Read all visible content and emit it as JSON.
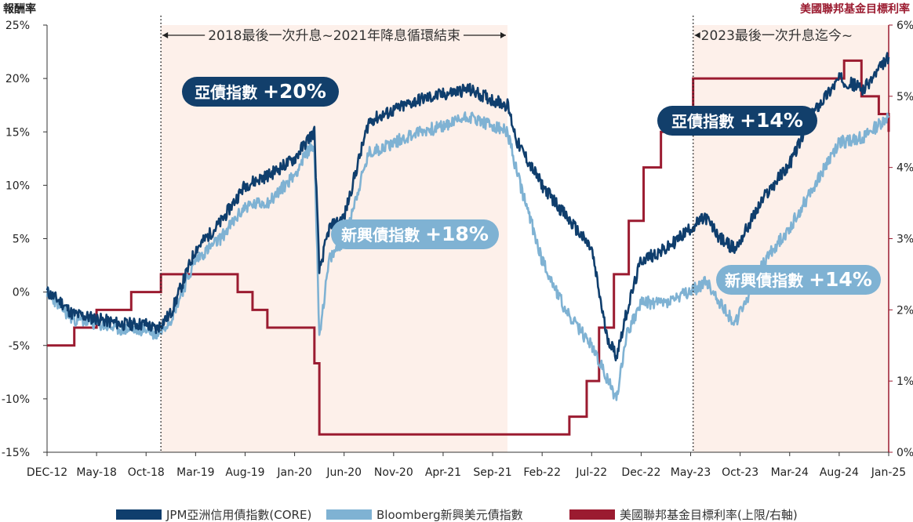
{
  "chart_data": {
    "type": "line",
    "title": "",
    "left_axis": {
      "title": "報酬率",
      "ylim": [
        -15,
        25
      ],
      "ticks": [
        25,
        20,
        15,
        10,
        5,
        0,
        -5,
        -10,
        -15
      ],
      "tick_labels": [
        "25%",
        "20%",
        "15%",
        "10%",
        "5%",
        "0%",
        "-5%",
        "-10%",
        "-15%"
      ]
    },
    "right_axis": {
      "title": "美國聯邦基金目標利率",
      "ylim": [
        0,
        6
      ],
      "ticks": [
        6,
        5,
        4,
        3,
        2,
        1,
        0
      ],
      "tick_labels": [
        "6%",
        "5%",
        "4%",
        "3%",
        "2%",
        "1%",
        "0%"
      ],
      "color": "#9b1b30"
    },
    "x_ticks": [
      "DEC-12",
      "May-18",
      "Oct-18",
      "Mar-19",
      "Aug-19",
      "Jan-20",
      "Jun-20",
      "Nov-20",
      "Apr-21",
      "Sep-21",
      "Feb-22",
      "Jul-22",
      "Dec-22",
      "May-23",
      "Oct-23",
      "Mar-24",
      "Aug-24",
      "Jan-25"
    ],
    "x_range": [
      0,
      17
    ],
    "shaded_periods": [
      {
        "start": 2.3,
        "end": 9.3,
        "label": "2018最後一次升息~2021年降息循環結束"
      },
      {
        "start": 13.05,
        "end": 17,
        "label": "2023最後一次升息迄今~"
      }
    ],
    "shade_color": "#fdf0ea",
    "series": [
      {
        "name": "JPM亞洲信用債指數(CORE)",
        "axis": "left",
        "color": "#0f3e6d",
        "x": [
          0,
          0.3,
          0.5,
          1,
          1.5,
          2,
          2.2,
          2.5,
          3,
          3.5,
          4,
          4.5,
          5,
          5.3,
          5.4,
          5.5,
          5.7,
          6,
          6.5,
          7,
          7.5,
          8,
          8.5,
          9,
          9.3,
          9.5,
          10,
          10.5,
          11,
          11.3,
          11.5,
          11.7,
          12,
          12.5,
          13,
          13.3,
          13.6,
          13.9,
          14.5,
          15,
          15.5,
          16,
          16.5,
          17
        ],
        "values": [
          0,
          -1,
          -2,
          -2.5,
          -3,
          -3,
          -3.5,
          -2,
          4,
          6.5,
          10,
          11,
          12.5,
          14.5,
          15,
          2,
          6,
          7,
          16,
          17,
          18,
          18.5,
          19,
          18,
          17.5,
          14,
          10,
          7,
          4,
          -4,
          -6,
          -2,
          3,
          4,
          6,
          7,
          5,
          4,
          9,
          12,
          17,
          20,
          19,
          22
        ]
      },
      {
        "name": "Bloomberg新興美元債指數",
        "axis": "left",
        "color": "#7fb2d3",
        "x": [
          0,
          0.3,
          0.5,
          1,
          1.5,
          2,
          2.2,
          2.5,
          3,
          3.5,
          4,
          4.5,
          5,
          5.3,
          5.4,
          5.5,
          5.7,
          6,
          6.5,
          7,
          7.5,
          8,
          8.5,
          9,
          9.3,
          9.5,
          10,
          10.5,
          11,
          11.3,
          11.5,
          11.7,
          12,
          12.5,
          13,
          13.3,
          13.6,
          13.9,
          14.5,
          15,
          15.5,
          16,
          16.5,
          17
        ],
        "values": [
          0,
          -1.5,
          -2.5,
          -3,
          -3.5,
          -3.5,
          -4,
          -2.5,
          3,
          5,
          8,
          8.5,
          11,
          13.5,
          13.5,
          -4,
          3,
          5,
          13,
          14,
          15,
          15.5,
          16.5,
          15.5,
          15,
          11,
          3,
          -2,
          -5,
          -8,
          -10,
          -4,
          -1,
          -1,
          0,
          1,
          -1,
          -3,
          3,
          6,
          10,
          14,
          14.5,
          16.5
        ]
      },
      {
        "name": "美國聯邦基金目標利率(上限/右軸)",
        "axis": "right",
        "color": "#9b1b30",
        "step": true,
        "x": [
          0,
          0.55,
          1,
          1.7,
          2.3,
          3.85,
          4.15,
          4.45,
          5.4,
          5.5,
          9.2,
          10.55,
          10.9,
          11.15,
          11.45,
          11.75,
          12.05,
          12.4,
          12.75,
          13.05,
          16.1,
          16.45,
          16.8,
          17
        ],
        "values": [
          1.5,
          1.75,
          2,
          2.25,
          2.5,
          2.25,
          2,
          1.75,
          1.25,
          0.25,
          0.25,
          0.5,
          1,
          1.75,
          2.5,
          3.25,
          4,
          4.5,
          4.75,
          5.25,
          5.5,
          5,
          4.75,
          4.5
        ]
      }
    ],
    "callouts": [
      {
        "label": "亞債指數",
        "value": "+20%",
        "style": "dark"
      },
      {
        "label": "新興債指數",
        "value": "+18%",
        "style": "light"
      },
      {
        "label": "亞債指數",
        "value": "+14%",
        "style": "dark"
      },
      {
        "label": "新興債指數",
        "value": "+14%",
        "style": "light"
      }
    ],
    "legend": {
      "placement": "bottom",
      "entries": [
        "JPM亞洲信用債指數(CORE)",
        "Bloomberg新興美元債指數",
        "美國聯邦基金目標利率(上限/右軸)"
      ]
    }
  }
}
